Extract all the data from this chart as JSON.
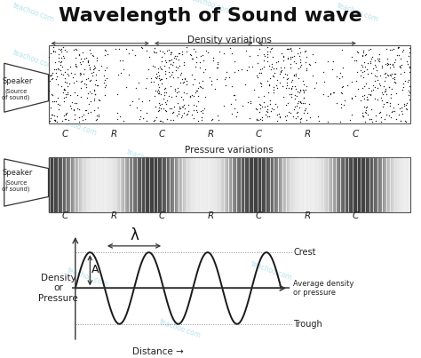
{
  "title": "Wavelength of Sound wave",
  "title_fontsize": 16,
  "bg_color": "#ffffff",
  "watermark_color": "#aadde8",
  "wave_color": "#1a1a1a",
  "crLabels": [
    "C",
    "R",
    "C",
    "R",
    "C",
    "R",
    "C"
  ],
  "crPositions": [
    0.155,
    0.27,
    0.385,
    0.5,
    0.615,
    0.73,
    0.845
  ],
  "density_label": "Density variations",
  "pressure_label": "Pressure variations",
  "speaker_label1": "Speaker",
  "speaker_label2": "(Source\nof sound)",
  "ylabel_wave": "Density\nor\nPressure",
  "xlabel_wave": "Distance →",
  "crest_label": "Crest",
  "trough_label": "Trough",
  "avg_label": "Average density\nor pressure",
  "lambda_label": "λ",
  "amp_label": "A"
}
